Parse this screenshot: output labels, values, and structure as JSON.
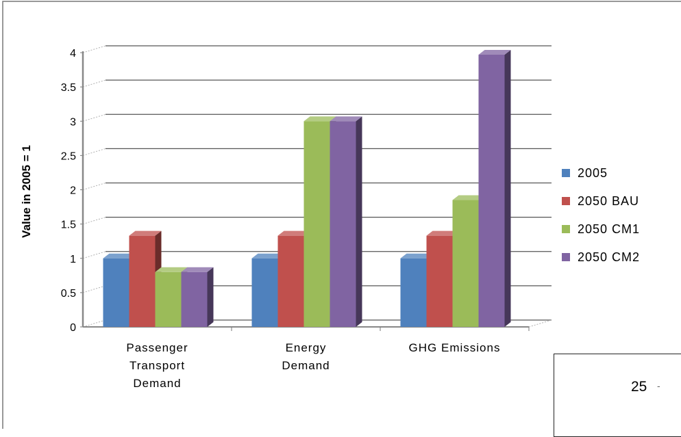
{
  "chart_data": {
    "type": "bar",
    "title": "",
    "ylabel": "Value in 2005 = 1",
    "xlabel": "",
    "ylim": [
      0,
      4
    ],
    "yticks": [
      "0",
      "0.5",
      "1",
      "1.5",
      "2",
      "2.5",
      "3",
      "3.5",
      "4"
    ],
    "categories": [
      [
        "Passenger",
        "Transport",
        "Demand"
      ],
      [
        "Energy",
        "Demand"
      ],
      [
        "GHG Emissions"
      ]
    ],
    "series": [
      {
        "name": "2005",
        "values": [
          1.0,
          1.0,
          1.0
        ],
        "color": "#4f81bd"
      },
      {
        "name": "2050 BAU",
        "values": [
          1.33,
          1.33,
          1.33
        ],
        "color": "#c0504d"
      },
      {
        "name": "2050 CM1",
        "values": [
          0.8,
          3.0,
          1.85
        ],
        "color": "#9bbb59"
      },
      {
        "name": "2050 CM2",
        "values": [
          0.8,
          3.0,
          3.97
        ],
        "color": "#8064a2"
      }
    ],
    "legend_position": "right",
    "grid": true,
    "style": "3d-clustered-column"
  },
  "footer": {
    "page_number": "25"
  }
}
